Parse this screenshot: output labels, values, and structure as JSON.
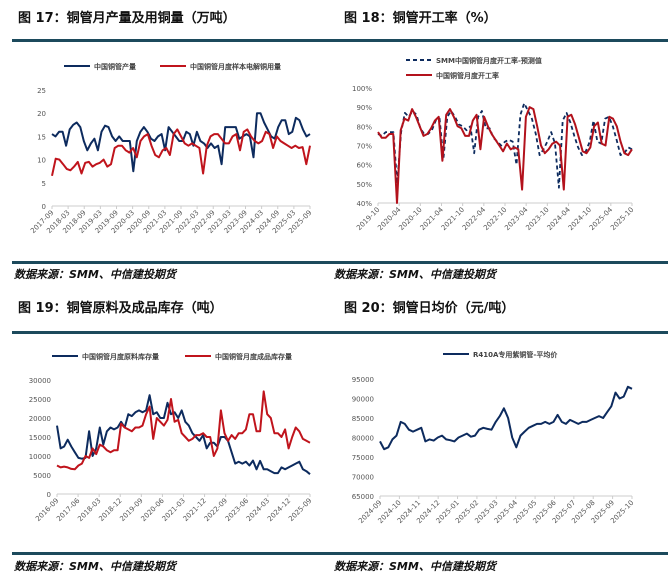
{
  "source_label": "数据来源：SMM、中信建投期货",
  "chart_data": [
    {
      "type": "line",
      "title": "图 17：铜管月产量及用铜量（万吨）",
      "ylim": [
        0,
        25
      ],
      "yticks": [
        "0",
        "5",
        "10",
        "15",
        "20",
        "25"
      ],
      "xticks": [
        "2017-09",
        "2018-03",
        "2018-09",
        "2019-03",
        "2019-09",
        "2020-03",
        "2020-09",
        "2021-03",
        "2021-09",
        "2022-03",
        "2022-09",
        "2023-03",
        "2023-09",
        "2024-03",
        "2024-09",
        "2025-03",
        "2025-09"
      ],
      "legend": "top",
      "series": [
        {
          "name": "中国铜管产量",
          "color": "#0d2b5e",
          "dash": false,
          "values": [
            15.5,
            15,
            16,
            16,
            13,
            16.5,
            17.5,
            18,
            17,
            14,
            12,
            13.5,
            14.5,
            12,
            16,
            17.3,
            17,
            15,
            14,
            15,
            14,
            14,
            14,
            7.5,
            14,
            16,
            17,
            16,
            14.5,
            14,
            15,
            15.5,
            12,
            17,
            16,
            15,
            14,
            14,
            16,
            15.5,
            13,
            16,
            14,
            13.5,
            12.5,
            13.5,
            12.5,
            13,
            9,
            17,
            17,
            17,
            17,
            14.5,
            15,
            15.5,
            15,
            10.5,
            20,
            20,
            18,
            16.5,
            15,
            14.5,
            17,
            18.5,
            18.5,
            15.5,
            16,
            19,
            18.5,
            16.5,
            15,
            15.5
          ]
        },
        {
          "name": "中国铜管月度样本电解铜用量",
          "color": "#c0141c",
          "dash": false,
          "values": [
            6.5,
            10.2,
            10,
            9,
            8,
            7.7,
            8.5,
            9.5,
            7,
            9.3,
            9.5,
            8.5,
            9,
            9.3,
            10,
            8.5,
            9,
            12.5,
            13,
            13,
            12,
            11.5,
            12.5,
            10.5,
            14,
            15,
            15.5,
            13,
            11,
            10.5,
            12,
            12.5,
            11,
            15.5,
            16.5,
            15,
            13.5,
            13,
            13.5,
            13,
            12.5,
            7,
            13,
            15,
            15.5,
            15.5,
            14.5,
            13.5,
            13.5,
            15,
            15.5,
            12,
            16,
            16.5,
            15,
            14,
            13.5,
            14,
            16,
            15.5,
            12.5,
            15,
            14,
            13.5,
            13,
            12.5,
            13,
            12.5,
            12.7,
            9,
            13
          ]
        }
      ]
    },
    {
      "type": "line",
      "title": "图 18：铜管开工率（%）",
      "ylim": [
        40,
        100
      ],
      "yticks": [
        "40%",
        "50%",
        "60%",
        "70%",
        "80%",
        "90%",
        "100%"
      ],
      "xticks": [
        "2019-10",
        "2020-04",
        "2020-10",
        "2021-04",
        "2021-10",
        "2022-04",
        "2022-10",
        "2023-04",
        "2023-10",
        "2024-04",
        "2024-10",
        "2025-04",
        "2025-10"
      ],
      "legend": "top-left",
      "series": [
        {
          "name": "SMM中国铜管月度开工率-预测值",
          "color": "#0d2b5e",
          "dash": true,
          "values": [
            76,
            75,
            77,
            77,
            77,
            50,
            77,
            87,
            85,
            88,
            86,
            79,
            76,
            76,
            78,
            83,
            84,
            63,
            85,
            88,
            85,
            81,
            80,
            78,
            80,
            66,
            85,
            88,
            79,
            79,
            74,
            72,
            70,
            72,
            73,
            72,
            60,
            86,
            92,
            88,
            84,
            76,
            65,
            68,
            72,
            77,
            71,
            48,
            83,
            87,
            82,
            75,
            69,
            65,
            67,
            72,
            83,
            72,
            71,
            84,
            85,
            80,
            73,
            65,
            66,
            69,
            68
          ]
        },
        {
          "name": "中国铜管月度开工率",
          "color": "#b3121c",
          "dash": false,
          "values": [
            77,
            74,
            74,
            76,
            76,
            40,
            78,
            84,
            83,
            89,
            85,
            80,
            75,
            76,
            79,
            83,
            85,
            62,
            86,
            89,
            85,
            80,
            79,
            75,
            75,
            83,
            86,
            68,
            85,
            80,
            76,
            73,
            70,
            67,
            71,
            68,
            69,
            68,
            47,
            85,
            90,
            89,
            80,
            70,
            66,
            68,
            71,
            72,
            70,
            47,
            85,
            86,
            81,
            74,
            67,
            66,
            69,
            80,
            82,
            71,
            70,
            85,
            84,
            80,
            72,
            66,
            65,
            68
          ]
        }
      ]
    },
    {
      "type": "line",
      "title": "图 19：铜管原料及成品库存（吨）",
      "ylim": [
        0,
        30000
      ],
      "yticks": [
        "0",
        "5000",
        "10000",
        "15000",
        "20000",
        "25000",
        "30000"
      ],
      "xticks": [
        "2016-09",
        "2017-06",
        "2018-03",
        "2018-12",
        "2019-09",
        "2020-06",
        "2021-03",
        "2021-12",
        "2022-09",
        "2023-06",
        "2024-03",
        "2024-12",
        "2025-09"
      ],
      "legend": "top",
      "series": [
        {
          "name": "中国铜管月度原料库存量",
          "color": "#0d2b5e",
          "dash": false,
          "values": [
            18000,
            12000,
            12500,
            14300,
            12500,
            11000,
            9500,
            9300,
            9500,
            16500,
            10000,
            12000,
            17500,
            13000,
            16500,
            17500,
            17000,
            17500,
            19000,
            17500,
            21000,
            20500,
            21500,
            22000,
            21500,
            22000,
            26000,
            21000,
            21500,
            20000,
            20000,
            24000,
            21000,
            21500,
            20000,
            22000,
            19000,
            18000,
            16000,
            15000,
            14000,
            15500,
            12000,
            13500,
            13500,
            12500,
            15000,
            15000,
            14000,
            11000,
            8000,
            8500,
            8000,
            8500,
            7500,
            8800,
            6500,
            8700,
            6500,
            6500,
            6000,
            5500,
            5500,
            7000,
            6500,
            7000,
            7500,
            8000,
            8500,
            6500,
            6000,
            5200
          ]
        },
        {
          "name": "中国铜管月度成品库存量",
          "color": "#c0141c",
          "dash": false,
          "values": [
            7500,
            7000,
            7200,
            7000,
            6600,
            6500,
            7500,
            8000,
            10000,
            9500,
            12000,
            10500,
            13000,
            12500,
            11500,
            11000,
            11500,
            11500,
            18500,
            17500,
            17000,
            16500,
            17500,
            17500,
            18000,
            21000,
            23000,
            14500,
            20000,
            19000,
            18000,
            19500,
            25000,
            19000,
            19500,
            16000,
            15000,
            14000,
            14500,
            15500,
            15500,
            16000,
            15000,
            15000,
            10000,
            12000,
            22000,
            16000,
            14000,
            15500,
            14500,
            16000,
            16000,
            17000,
            21000,
            21000,
            16500,
            16500,
            27000,
            21000,
            20000,
            16000,
            16000,
            15000,
            17000,
            12000,
            15000,
            17500,
            16500,
            14500,
            14000,
            13500
          ]
        }
      ]
    },
    {
      "type": "line",
      "title": "图 20：铜管日均价（元/吨）",
      "ylim": [
        65000,
        95000
      ],
      "yticks": [
        "65000",
        "70000",
        "75000",
        "80000",
        "85000",
        "90000",
        "95000"
      ],
      "xticks": [
        "2024-09",
        "2024-10",
        "2024-11",
        "2024-12",
        "2025-01",
        "2025-02",
        "2025-03",
        "2025-04",
        "2025-05",
        "2025-06",
        "2025-07",
        "2025-08",
        "2025-09",
        "2025-10"
      ],
      "legend": "top",
      "series": [
        {
          "name": "R410A专用紫铜管-平均价",
          "color": "#0d2b5e",
          "dash": false,
          "values": [
            79000,
            77000,
            77500,
            79500,
            80500,
            84000,
            83500,
            82000,
            81500,
            82000,
            82500,
            79000,
            79500,
            79200,
            80000,
            80500,
            79500,
            79300,
            79000,
            80000,
            80500,
            81000,
            80200,
            80500,
            82000,
            82500,
            82200,
            82000,
            84000,
            85500,
            87500,
            85000,
            80000,
            77500,
            80500,
            81500,
            82500,
            83000,
            83500,
            83500,
            84000,
            83500,
            84000,
            85800,
            84000,
            83500,
            84500,
            84000,
            83500,
            84000,
            84000,
            84500,
            85000,
            85500,
            85000,
            86500,
            88000,
            91500,
            90000,
            90500,
            93000,
            92500
          ]
        }
      ]
    }
  ]
}
